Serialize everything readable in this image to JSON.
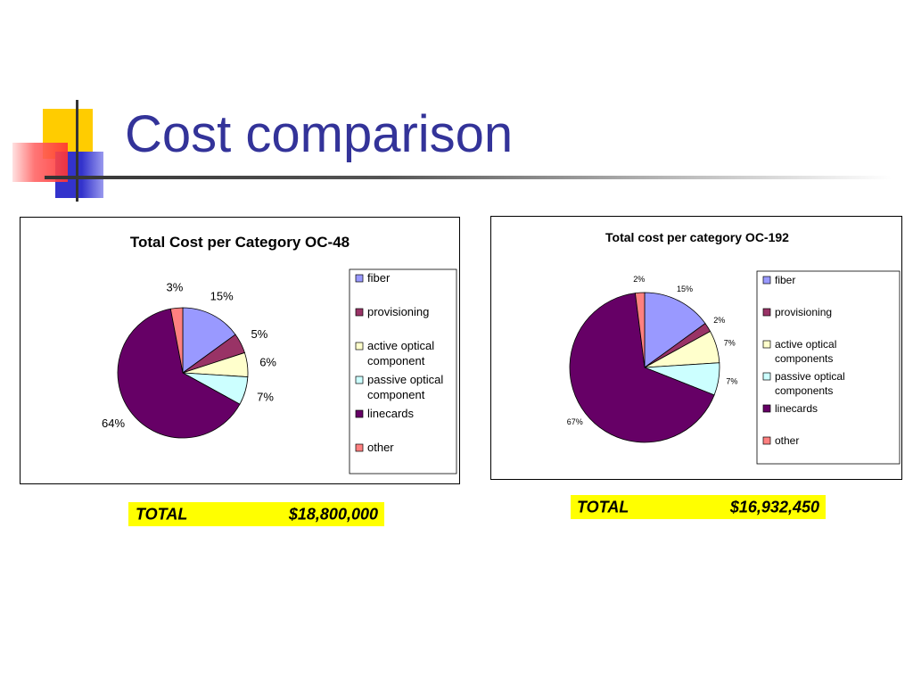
{
  "slide": {
    "title": "Cost comparison"
  },
  "colors": {
    "title": "#333399",
    "deco_yellow": "#ffcc00",
    "deco_red": "#ff3333",
    "deco_blue": "#3333cc",
    "total_bg": "#ffff00"
  },
  "chart_data": [
    {
      "type": "pie",
      "title": "Total Cost per Category OC-48",
      "categories": [
        "fiber",
        "provisioning",
        "active optical component",
        "passive optical component",
        "linecards",
        "other"
      ],
      "values": [
        15,
        5,
        6,
        7,
        64,
        3
      ],
      "labels": [
        "15%",
        "5%",
        "6%",
        "7%",
        "64%",
        "3%"
      ],
      "colors": [
        "#9999ff",
        "#993366",
        "#ffffcc",
        "#ccffff",
        "#660066",
        "#ff8080"
      ],
      "legend": "right"
    },
    {
      "type": "pie",
      "title": "Total cost per category OC-192",
      "categories": [
        "fiber",
        "provisioning",
        "active optical components",
        "passive optical components",
        "linecards",
        "other"
      ],
      "values": [
        15,
        2,
        7,
        7,
        67,
        2
      ],
      "labels": [
        "15%",
        "2%",
        "7%",
        "7%",
        "67%",
        "2%"
      ],
      "colors": [
        "#9999ff",
        "#993366",
        "#ffffcc",
        "#ccffff",
        "#660066",
        "#ff8080"
      ],
      "legend": "right"
    }
  ],
  "totals": [
    {
      "label": "TOTAL",
      "value": "$18,800,000"
    },
    {
      "label": "TOTAL",
      "value": "$16,932,450"
    }
  ]
}
